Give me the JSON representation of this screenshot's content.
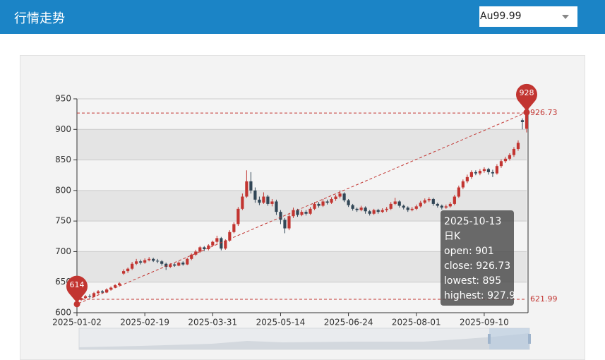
{
  "header": {
    "title": "行情走势",
    "select": "Au99.99"
  },
  "chart_data": {
    "type": "candlestick",
    "categories": [
      "2025-01-02",
      null,
      null,
      null,
      null,
      null,
      null,
      null,
      null,
      null,
      null,
      null,
      null,
      null,
      null,
      null,
      "2025-02-19",
      null,
      null,
      null,
      null,
      null,
      null,
      null,
      null,
      null,
      null,
      null,
      null,
      null,
      null,
      null,
      "2025-03-31",
      null,
      null,
      null,
      null,
      null,
      null,
      null,
      null,
      null,
      null,
      null,
      null,
      null,
      null,
      null,
      "2025-05-14",
      null,
      null,
      null,
      null,
      null,
      null,
      null,
      null,
      null,
      null,
      null,
      null,
      null,
      null,
      null,
      "2025-06-24",
      null,
      null,
      null,
      null,
      null,
      null,
      null,
      null,
      null,
      null,
      null,
      null,
      null,
      null,
      null,
      "2025-08-01",
      null,
      null,
      null,
      null,
      null,
      null,
      null,
      null,
      null,
      null,
      null,
      null,
      null,
      null,
      null,
      "2025-09-10",
      null,
      null,
      null,
      null,
      null,
      null,
      null,
      null,
      null,
      "2025-10-13"
    ],
    "series": [
      {
        "name": "日K",
        "up_color": "#c23531",
        "down_color": "#314656",
        "values": [
          [
            618,
            621.99,
            614,
            623
          ],
          [
            621,
            624,
            619,
            626
          ],
          [
            624,
            627,
            622,
            629
          ],
          [
            627,
            626,
            624,
            630
          ],
          [
            626,
            632,
            625,
            634
          ],
          [
            632,
            635,
            630,
            637
          ],
          [
            635,
            633,
            631,
            637
          ],
          [
            633,
            638,
            632,
            640
          ],
          [
            638,
            641,
            636,
            643
          ],
          [
            641,
            645,
            640,
            647
          ],
          [
            645,
            648,
            643,
            650
          ],
          [
            664,
            668,
            662,
            671
          ],
          [
            668,
            672,
            665,
            674
          ],
          [
            672,
            680,
            670,
            683
          ],
          [
            680,
            684,
            678,
            688
          ],
          [
            684,
            682,
            679,
            687
          ],
          [
            682,
            686,
            680,
            689
          ],
          [
            686,
            688,
            684,
            691
          ],
          [
            688,
            685,
            683,
            690
          ],
          [
            685,
            684,
            681,
            688
          ],
          [
            684,
            680,
            677,
            686
          ],
          [
            680,
            675,
            670,
            682
          ],
          [
            675,
            679,
            673,
            681
          ],
          [
            679,
            677,
            675,
            681
          ],
          [
            677,
            682,
            676,
            684
          ],
          [
            682,
            679,
            677,
            684
          ],
          [
            679,
            688,
            678,
            690
          ],
          [
            688,
            695,
            686,
            697
          ],
          [
            695,
            700,
            693,
            703
          ],
          [
            700,
            707,
            698,
            709
          ],
          [
            707,
            704,
            701,
            709
          ],
          [
            704,
            710,
            702,
            712
          ],
          [
            710,
            716,
            708,
            718
          ],
          [
            716,
            722,
            713,
            726
          ],
          [
            722,
            705,
            702,
            724
          ],
          [
            705,
            718,
            703,
            720
          ],
          [
            718,
            732,
            716,
            735
          ],
          [
            732,
            745,
            730,
            748
          ],
          [
            745,
            770,
            742,
            773
          ],
          [
            770,
            790,
            768,
            795
          ],
          [
            790,
            815,
            788,
            833
          ],
          [
            815,
            800,
            795,
            830
          ],
          [
            800,
            785,
            780,
            805
          ],
          [
            785,
            780,
            776,
            790
          ],
          [
            780,
            790,
            778,
            797
          ],
          [
            790,
            778,
            775,
            793
          ],
          [
            778,
            782,
            774,
            786
          ],
          [
            782,
            765,
            760,
            785
          ],
          [
            765,
            752,
            745,
            768
          ],
          [
            752,
            738,
            730,
            755
          ],
          [
            738,
            758,
            735,
            762
          ],
          [
            758,
            768,
            755,
            772
          ],
          [
            768,
            760,
            757,
            770
          ],
          [
            760,
            765,
            758,
            768
          ],
          [
            765,
            762,
            759,
            768
          ],
          [
            762,
            770,
            760,
            773
          ],
          [
            770,
            778,
            768,
            781
          ],
          [
            778,
            775,
            772,
            781
          ],
          [
            775,
            782,
            773,
            786
          ],
          [
            782,
            780,
            777,
            785
          ],
          [
            780,
            786,
            778,
            789
          ],
          [
            786,
            790,
            783,
            793
          ],
          [
            790,
            795,
            787,
            800
          ],
          [
            795,
            784,
            781,
            797
          ],
          [
            784,
            776,
            773,
            786
          ],
          [
            776,
            770,
            767,
            778
          ],
          [
            770,
            768,
            765,
            772
          ],
          [
            768,
            772,
            766,
            775
          ],
          [
            772,
            766,
            762,
            774
          ],
          [
            766,
            762,
            759,
            768
          ],
          [
            762,
            768,
            760,
            770
          ],
          [
            768,
            765,
            762,
            770
          ],
          [
            765,
            768,
            763,
            771
          ],
          [
            768,
            770,
            765,
            773
          ],
          [
            770,
            778,
            768,
            781
          ],
          [
            778,
            782,
            776,
            788
          ],
          [
            782,
            775,
            772,
            784
          ],
          [
            775,
            772,
            769,
            777
          ],
          [
            772,
            768,
            765,
            774
          ],
          [
            768,
            770,
            766,
            773
          ],
          [
            770,
            774,
            768,
            777
          ],
          [
            774,
            780,
            772,
            783
          ],
          [
            780,
            784,
            778,
            787
          ],
          [
            784,
            786,
            781,
            789
          ],
          [
            786,
            778,
            775,
            788
          ],
          [
            778,
            775,
            772,
            780
          ],
          [
            775,
            772,
            769,
            777
          ],
          [
            772,
            774,
            770,
            777
          ],
          [
            774,
            778,
            772,
            781
          ],
          [
            778,
            790,
            776,
            793
          ],
          [
            790,
            805,
            788,
            808
          ],
          [
            805,
            815,
            802,
            818
          ],
          [
            815,
            822,
            812,
            826
          ],
          [
            822,
            830,
            819,
            833
          ],
          [
            830,
            828,
            825,
            833
          ],
          [
            828,
            832,
            825,
            835
          ],
          [
            832,
            835,
            829,
            838
          ],
          [
            835,
            830,
            826,
            837
          ],
          [
            830,
            828,
            822,
            834
          ],
          [
            828,
            840,
            826,
            843
          ],
          [
            840,
            848,
            837,
            851
          ],
          [
            848,
            852,
            845,
            855
          ],
          [
            852,
            858,
            849,
            861
          ],
          [
            858,
            868,
            855,
            871
          ],
          [
            868,
            878,
            865,
            882
          ],
          [
            915,
            912,
            900,
            918
          ],
          [
            901,
            926.73,
            895,
            927.9
          ]
        ]
      }
    ],
    "ylim": [
      600,
      950
    ],
    "yticks": [
      600,
      650,
      700,
      750,
      800,
      850,
      900,
      950
    ],
    "split_area": true,
    "mark_points": {
      "values": [
        927.9,
        614
      ],
      "value_labels": [
        "928",
        "614"
      ],
      "color": "#c23531"
    },
    "mark_lines": {
      "values": [
        926.73,
        621.99
      ]
    },
    "tooltip": {
      "lines": [
        "open: 901",
        "close: 926.73",
        "lowest: 895",
        "highest: 927.9"
      ]
    }
  }
}
